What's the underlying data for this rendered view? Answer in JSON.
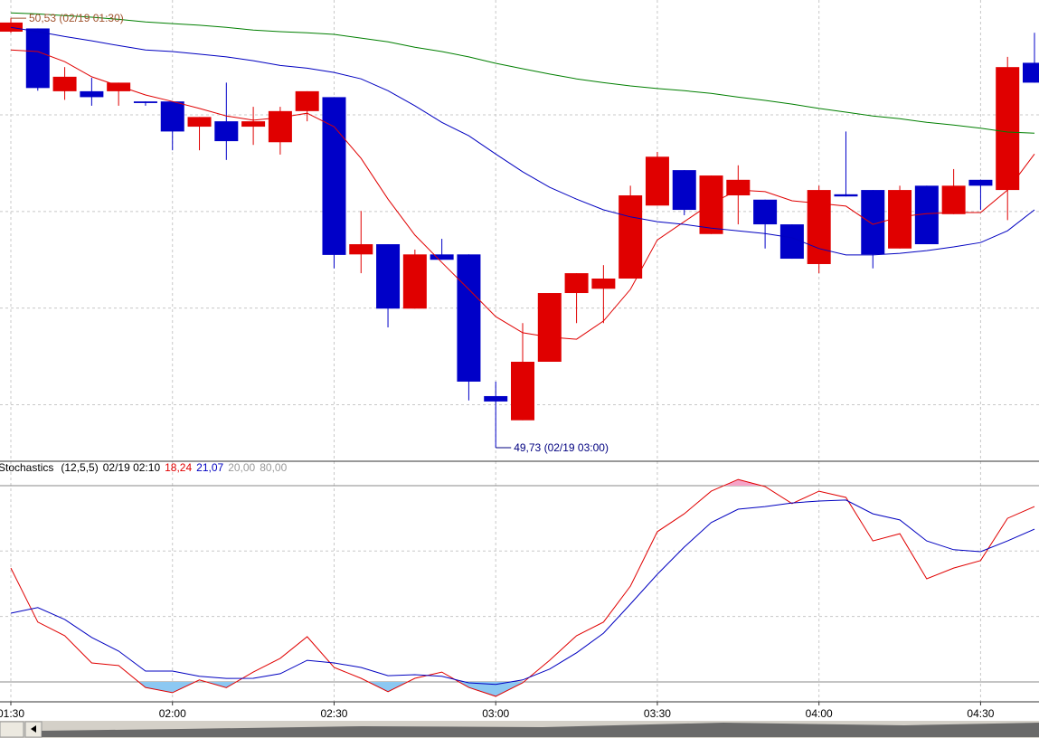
{
  "chart_data": [
    {
      "type": "candlestick",
      "open": [
        50.505,
        50.511,
        50.394,
        50.394,
        50.394,
        50.375,
        50.375,
        50.328,
        50.338,
        50.328,
        50.299,
        50.357,
        50.383,
        50.09,
        50.109,
        49.989,
        50.09,
        50.09,
        49.826,
        49.781,
        49.89,
        50.018,
        50.026,
        50.045,
        50.181,
        50.247,
        50.128,
        50.2,
        50.192,
        50.146,
        50.072,
        50.202,
        50.21,
        50.101,
        50.218,
        50.165,
        50.229,
        50.21,
        50.447
      ],
      "high": [
        50.53,
        50.511,
        50.439,
        50.419,
        50.41,
        50.375,
        50.375,
        50.346,
        50.41,
        50.365,
        50.365,
        50.394,
        50.383,
        50.171,
        50.109,
        50.099,
        50.119,
        50.09,
        49.853,
        49.962,
        50.018,
        50.055,
        50.07,
        50.218,
        50.281,
        50.247,
        50.237,
        50.256,
        50.192,
        50.146,
        50.218,
        50.319,
        50.21,
        50.218,
        50.218,
        50.249,
        50.229,
        50.458,
        50.503
      ],
      "low": [
        50.503,
        50.395,
        50.378,
        50.367,
        50.367,
        50.367,
        50.284,
        50.284,
        50.266,
        50.294,
        50.276,
        50.338,
        50.064,
        50.055,
        49.954,
        49.989,
        50.08,
        49.818,
        49.73,
        49.781,
        49.89,
        49.962,
        49.962,
        50.045,
        50.181,
        50.163,
        50.128,
        50.146,
        50.101,
        50.082,
        50.055,
        50.198,
        50.064,
        50.101,
        50.109,
        50.165,
        50.173,
        50.154,
        50.41
      ],
      "close": [
        50.522,
        50.4,
        50.421,
        50.383,
        50.41,
        50.372,
        50.319,
        50.346,
        50.301,
        50.338,
        50.357,
        50.394,
        50.089,
        50.109,
        49.989,
        50.09,
        50.08,
        49.853,
        49.816,
        49.89,
        50.018,
        50.055,
        50.045,
        50.2,
        50.272,
        50.173,
        50.237,
        50.229,
        50.146,
        50.082,
        50.21,
        50.198,
        50.09,
        50.21,
        50.109,
        50.218,
        50.218,
        50.439,
        50.41
      ],
      "up_color": "#e00000",
      "down_color": "#0000c8",
      "series": [
        {
          "color": "#e00000",
          "values": [
            50.471,
            50.468,
            50.449,
            50.421,
            50.404,
            50.387,
            50.375,
            50.362,
            50.348,
            50.34,
            50.345,
            50.353,
            50.328,
            50.269,
            50.193,
            50.126,
            50.075,
            50.025,
            49.974,
            49.944,
            49.936,
            49.932,
            49.966,
            50.025,
            50.117,
            50.151,
            50.185,
            50.21,
            50.207,
            50.19,
            50.185,
            50.18,
            50.146,
            50.16,
            50.166,
            50.168,
            50.168,
            50.21,
            50.277
          ]
        },
        {
          "color": "#0000c0",
          "values": [
            50.513,
            50.505,
            50.496,
            50.488,
            50.479,
            50.471,
            50.468,
            50.463,
            50.458,
            50.451,
            50.442,
            50.437,
            50.429,
            50.417,
            50.395,
            50.367,
            50.336,
            50.311,
            50.277,
            50.244,
            50.215,
            50.193,
            50.173,
            50.16,
            50.151,
            50.146,
            50.139,
            50.134,
            50.129,
            50.121,
            50.101,
            50.089,
            50.089,
            50.092,
            50.097,
            50.104,
            50.112,
            50.134,
            50.173
          ]
        },
        {
          "color": "#007f00",
          "values": [
            50.54,
            50.538,
            50.535,
            50.532,
            50.528,
            50.523,
            50.52,
            50.517,
            50.513,
            50.508,
            50.505,
            50.503,
            50.5,
            50.493,
            50.486,
            50.476,
            50.468,
            50.458,
            50.446,
            50.436,
            50.426,
            50.417,
            50.41,
            50.404,
            50.399,
            50.395,
            50.39,
            50.383,
            50.377,
            50.37,
            50.362,
            50.355,
            50.348,
            50.343,
            50.336,
            50.331,
            50.325,
            50.318,
            50.316
          ]
        }
      ],
      "annotations": [
        {
          "value": 50.53,
          "label": "50,53 (02/19 01:30)",
          "color": "#a0522d"
        },
        {
          "value": 49.73,
          "label": "49,73 (02/19 03:00)",
          "color": "#000080"
        }
      ],
      "ylim": [
        49.708,
        50.564
      ],
      "yticks": [
        50.35,
        50.17,
        49.99,
        49.81
      ],
      "grid": true
    },
    {
      "type": "line",
      "title": "Stochastics",
      "params": "(12,5,5)",
      "readout_time": "02/19 02:10",
      "readout": [
        "18,24",
        "21,07"
      ],
      "categories": [
        "01:30",
        null,
        null,
        null,
        null,
        null,
        "02:00",
        null,
        null,
        null,
        null,
        null,
        "02:30",
        null,
        null,
        null,
        null,
        null,
        "03:00",
        null,
        null,
        null,
        null,
        null,
        "03:30",
        null,
        null,
        null,
        null,
        null,
        "04:00",
        null,
        null,
        null,
        null,
        null,
        "04:30",
        null,
        null
      ],
      "series": [
        {
          "color": "#e00000",
          "values": [
            54.8,
            38.3,
            34.1,
            25.8,
            25.0,
            18.3,
            16.7,
            20.6,
            18.24,
            23.0,
            27.2,
            33.8,
            24.4,
            21.1,
            17.0,
            21.1,
            23.0,
            18.3,
            15.6,
            19.7,
            26.6,
            34.1,
            38.3,
            49.3,
            65.9,
            71.4,
            78.3,
            81.9,
            79.7,
            74.5,
            78.3,
            76.4,
            63.1,
            65.3,
            51.5,
            54.8,
            57.1,
            70.0,
            73.6
          ]
        },
        {
          "color": "#0000c0",
          "values": [
            41.0,
            42.7,
            39.1,
            33.6,
            29.4,
            23.3,
            23.3,
            21.7,
            21.07,
            21.1,
            22.5,
            26.6,
            25.8,
            24.4,
            21.9,
            22.2,
            21.7,
            19.7,
            19.2,
            20.6,
            23.9,
            28.9,
            34.9,
            43.8,
            52.9,
            61.2,
            68.7,
            72.8,
            73.6,
            74.7,
            75.3,
            75.6,
            71.4,
            69.5,
            63.1,
            60.4,
            59.8,
            63.1,
            66.7
          ]
        }
      ],
      "levels": [
        {
          "value": 20,
          "label": "20,00"
        },
        {
          "value": 80,
          "label": "80,00"
        }
      ],
      "level_color": "#999999",
      "overbought_fill": "#f5a3c7",
      "oversold_fill": "#8cc8f2",
      "ylim": [
        13.9,
        86.9
      ],
      "yticks": [
        60,
        40
      ],
      "grid": true
    }
  ]
}
